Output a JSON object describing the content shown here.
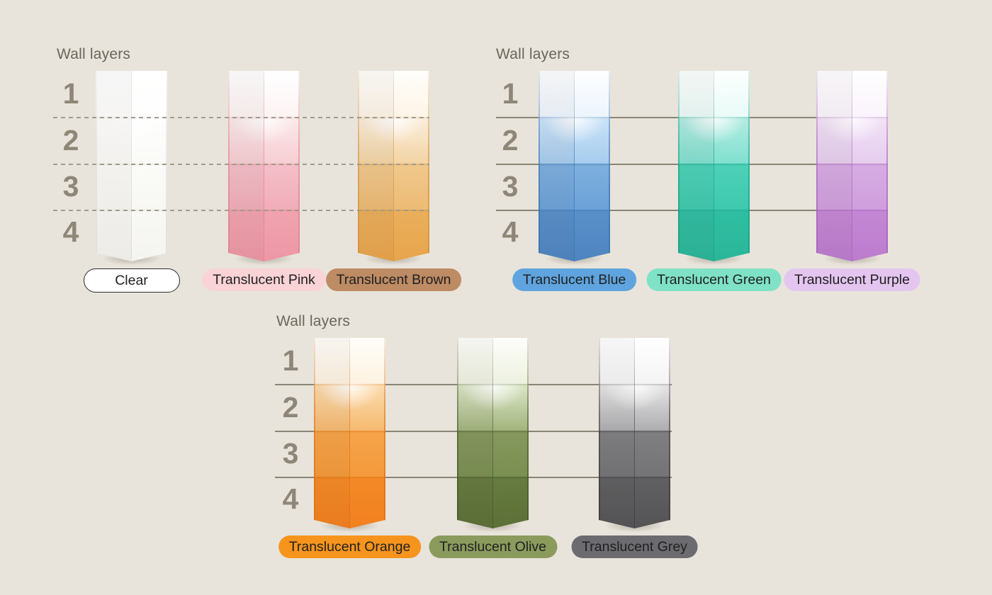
{
  "colors": {
    "background": "#e8e4db",
    "title_text": "#6b665b",
    "layer_number_text": "#8e8779",
    "gridline_dashed": "#a29b8d",
    "gridline_solid": "#8b8578",
    "label_text": "#1f1f1f"
  },
  "groups": [
    {
      "title": "Wall layers",
      "layers": [
        "1",
        "2",
        "3",
        "4"
      ],
      "line_style": "dashed",
      "columns": [
        {
          "name": "Clear",
          "pill": {
            "bg": "#ffffff",
            "border": "#2a2a2a",
            "text": "#1f1f1f"
          },
          "edge": "#dcdbd4",
          "bands": [
            [
              "#ffffff",
              "#fefefd"
            ],
            [
              "#fefefd",
              "#fafaf7"
            ],
            [
              "#fbfbf8",
              "#f7f7f3"
            ],
            [
              "#f8f8f5",
              "#f4f4f0"
            ]
          ]
        },
        {
          "name": "Translucent Pink",
          "pill": {
            "bg": "#f9d3d6"
          },
          "edge": "#e08191",
          "bands": [
            [
              "#ffffff",
              "#fdf3f3"
            ],
            [
              "#fbeaea",
              "#f6cdd3"
            ],
            [
              "#f4c0c9",
              "#f1adb9"
            ],
            [
              "#f0a3b0",
              "#ee97a6"
            ]
          ]
        },
        {
          "name": "Translucent Brown",
          "pill": {
            "bg": "#bd8b64"
          },
          "edge": "#d2913c",
          "bands": [
            [
              "#fffefb",
              "#fdf4e7"
            ],
            [
              "#faeedd",
              "#f3d4a3"
            ],
            [
              "#f0c98d",
              "#edbb75"
            ],
            [
              "#eaaf5d",
              "#e8a54b"
            ]
          ]
        }
      ]
    },
    {
      "title": "Wall layers",
      "layers": [
        "1",
        "2",
        "3",
        "4"
      ],
      "line_style": "solid",
      "columns": [
        {
          "name": "Translucent Blue",
          "pill": {
            "bg": "#5fa4de"
          },
          "edge": "#3a72b0",
          "bands": [
            [
              "#fdfeff",
              "#edf5fd"
            ],
            [
              "#cbe3f7",
              "#a6ccee"
            ],
            [
              "#7fb0df",
              "#6ba2d8"
            ],
            [
              "#5a90ca",
              "#4e85c0"
            ]
          ]
        },
        {
          "name": "Translucent Green",
          "pill": {
            "bg": "#7fe2c6"
          },
          "edge": "#16a085",
          "bands": [
            [
              "#fcfffe",
              "#eafbf7"
            ],
            [
              "#b4ece2",
              "#7fe0cf"
            ],
            [
              "#4dd1b8",
              "#3ec9ae"
            ],
            [
              "#30bea2",
              "#2ab699"
            ]
          ]
        },
        {
          "name": "Translucent Purple",
          "pill": {
            "bg": "#e4c5f0"
          },
          "edge": "#a460bd",
          "bands": [
            [
              "#fffeff",
              "#faf4fc"
            ],
            [
              "#f1e2f6",
              "#e5cdee"
            ],
            [
              "#d7ade3",
              "#cf9edd"
            ],
            [
              "#c488d4",
              "#bc7cce"
            ]
          ]
        }
      ]
    },
    {
      "title": "Wall layers",
      "layers": [
        "1",
        "2",
        "3",
        "4"
      ],
      "line_style": "solid",
      "columns": [
        {
          "name": "Translucent Orange",
          "pill": {
            "bg": "#f7941e"
          },
          "edge": "#de6f15",
          "bands": [
            [
              "#fffefa",
              "#fdf2e0"
            ],
            [
              "#fbdcb0",
              "#f6ba70"
            ],
            [
              "#f6a44b",
              "#f49a3b"
            ],
            [
              "#f38a27",
              "#f2801f"
            ]
          ]
        },
        {
          "name": "Translucent Olive",
          "pill": {
            "bg": "#8a9b5d"
          },
          "edge": "#46562c",
          "bands": [
            [
              "#fdfefa",
              "#edf1e0"
            ],
            [
              "#dce6c9",
              "#a2b47d"
            ],
            [
              "#86985e",
              "#7a8f52"
            ],
            [
              "#677c40",
              "#5c7037"
            ]
          ]
        },
        {
          "name": "Translucent Grey",
          "pill": {
            "bg": "#6b6b70"
          },
          "edge": "#3a3a3c",
          "bands": [
            [
              "#ffffff",
              "#f4f4f4"
            ],
            [
              "#e7e7e8",
              "#adadaf"
            ],
            [
              "#808082",
              "#747476"
            ],
            [
              "#616163",
              "#545456"
            ]
          ]
        }
      ]
    }
  ],
  "chart_data": {
    "type": "heatmap",
    "title": "Wall layers",
    "y_categories": [
      "1",
      "2",
      "3",
      "4"
    ],
    "ylabel": "Wall layers",
    "legend_position": "bottom",
    "grid": true,
    "series": [
      {
        "name": "Clear",
        "layer_colors": [
          "#fefefd",
          "#fafaf7",
          "#f7f7f3",
          "#f4f4f0"
        ]
      },
      {
        "name": "Translucent Pink",
        "layer_colors": [
          "#fdf3f3",
          "#f6cdd3",
          "#f1adb9",
          "#ee97a6"
        ]
      },
      {
        "name": "Translucent Brown",
        "layer_colors": [
          "#fdf4e7",
          "#f3d4a3",
          "#edbb75",
          "#e8a54b"
        ]
      },
      {
        "name": "Translucent Blue",
        "layer_colors": [
          "#edf5fd",
          "#a6ccee",
          "#6ba2d8",
          "#4e85c0"
        ]
      },
      {
        "name": "Translucent Green",
        "layer_colors": [
          "#eafbf7",
          "#7fe0cf",
          "#3ec9ae",
          "#2ab699"
        ]
      },
      {
        "name": "Translucent Purple",
        "layer_colors": [
          "#faf4fc",
          "#e5cdee",
          "#cf9edd",
          "#bc7cce"
        ]
      },
      {
        "name": "Translucent Orange",
        "layer_colors": [
          "#fdf2e0",
          "#f6ba70",
          "#f49a3b",
          "#f2801f"
        ]
      },
      {
        "name": "Translucent Olive",
        "layer_colors": [
          "#edf1e0",
          "#a2b47d",
          "#7a8f52",
          "#5c7037"
        ]
      },
      {
        "name": "Translucent Grey",
        "layer_colors": [
          "#f4f4f4",
          "#adadaf",
          "#747476",
          "#545456"
        ]
      }
    ]
  }
}
